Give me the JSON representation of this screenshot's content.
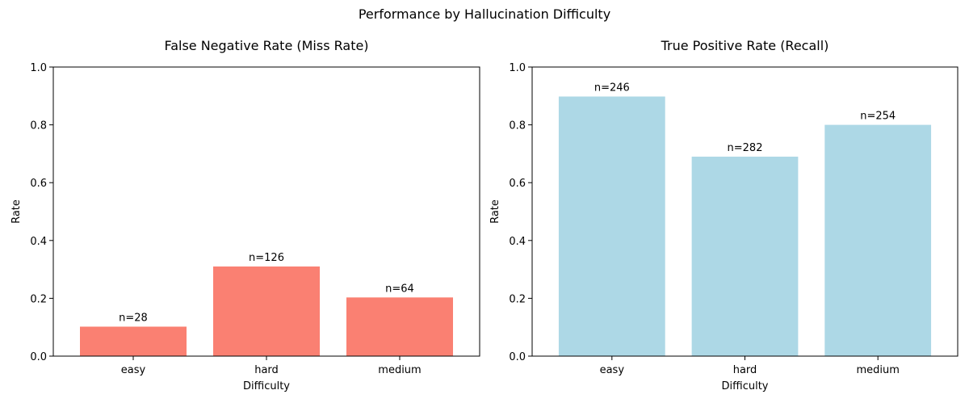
{
  "suptitle": "Performance by Hallucination Difficulty",
  "chart_data": [
    {
      "type": "bar",
      "title": "False Negative Rate (Miss Rate)",
      "xlabel": "Difficulty",
      "ylabel": "Rate",
      "ylim": [
        0,
        1
      ],
      "yticks": [
        0.0,
        0.2,
        0.4,
        0.6,
        0.8,
        1.0
      ],
      "ytick_labels": [
        "0.0",
        "0.2",
        "0.4",
        "0.6",
        "0.8",
        "1.0"
      ],
      "categories": [
        "easy",
        "hard",
        "medium"
      ],
      "values": [
        0.102,
        0.31,
        0.203
      ],
      "bar_labels": [
        "n=28",
        "n=126",
        "n=64"
      ],
      "color": "#fa8072",
      "grid": false
    },
    {
      "type": "bar",
      "title": "True Positive Rate (Recall)",
      "xlabel": "Difficulty",
      "ylabel": "Rate",
      "ylim": [
        0,
        1
      ],
      "yticks": [
        0.0,
        0.2,
        0.4,
        0.6,
        0.8,
        1.0
      ],
      "ytick_labels": [
        "0.0",
        "0.2",
        "0.4",
        "0.6",
        "0.8",
        "1.0"
      ],
      "categories": [
        "easy",
        "hard",
        "medium"
      ],
      "values": [
        0.898,
        0.69,
        0.8
      ],
      "bar_labels": [
        "n=246",
        "n=282",
        "n=254"
      ],
      "color": "#add8e6",
      "grid": false
    }
  ]
}
